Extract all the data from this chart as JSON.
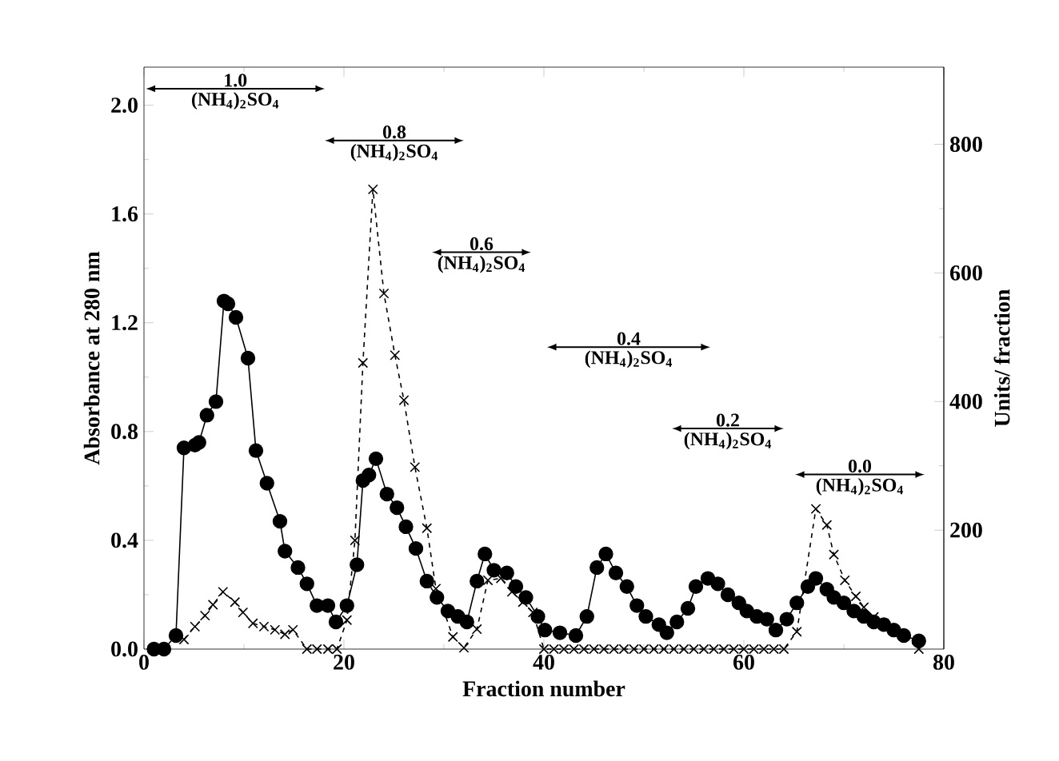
{
  "chart_data": {
    "type": "line",
    "xlabel": "Fraction number",
    "ylabel": "Absorbance at 280 nm",
    "y2label": "Units/ fraction",
    "xlim": [
      0,
      80
    ],
    "xticks": [
      0,
      20,
      40,
      60,
      80
    ],
    "ylim": [
      0,
      2.14
    ],
    "yticks": [
      {
        "value": 0,
        "label": "0.0"
      },
      {
        "value": 0.4,
        "label": "0.4"
      },
      {
        "value": 0.8,
        "label": "0.8"
      },
      {
        "value": 1.2,
        "label": "1.2"
      },
      {
        "value": 1.6,
        "label": "1.6"
      },
      {
        "value": 2.0,
        "label": "2.0"
      }
    ],
    "y2lim": [
      15,
      920
    ],
    "y2ticks": [
      200,
      400,
      600,
      800
    ],
    "series": [
      {
        "color": "#000000",
        "marker": "circle",
        "line_style": "solid",
        "axis": "y",
        "x": [
          1,
          2,
          3.2,
          4,
          5.1,
          5.5,
          6.3,
          7.2,
          8,
          8.4,
          9.2,
          10.4,
          11.2,
          12.3,
          13.6,
          14.1,
          15.4,
          16.3,
          17.3,
          18.4,
          19.2,
          20.3,
          21.3,
          21.9,
          22.5,
          23.2,
          24.3,
          25.3,
          26.2,
          27.2,
          28.3,
          29.3,
          30.4,
          31.4,
          32.3,
          33.3,
          34.1,
          35,
          36.3,
          37.2,
          38.2,
          39.4,
          40.1,
          41.6,
          43.2,
          44.3,
          45.3,
          46.2,
          47.2,
          48.3,
          49.3,
          50.2,
          51.5,
          52.3,
          53.3,
          54.4,
          55.2,
          56.4,
          57.4,
          58.4,
          59.5,
          60.3,
          61.3,
          62.3,
          63.2,
          64.3,
          65.3,
          66.4,
          67.2,
          68.3,
          69,
          70,
          71,
          72,
          73,
          74,
          75,
          76,
          77.5
        ],
        "values": [
          0,
          0,
          0.05,
          0.74,
          0.75,
          0.76,
          0.86,
          0.91,
          1.28,
          1.27,
          1.22,
          1.07,
          0.73,
          0.61,
          0.47,
          0.36,
          0.3,
          0.24,
          0.16,
          0.16,
          0.1,
          0.16,
          0.31,
          0.62,
          0.64,
          0.7,
          0.57,
          0.52,
          0.45,
          0.37,
          0.25,
          0.19,
          0.14,
          0.12,
          0.1,
          0.25,
          0.35,
          0.29,
          0.28,
          0.23,
          0.19,
          0.12,
          0.07,
          0.06,
          0.05,
          0.12,
          0.3,
          0.35,
          0.28,
          0.23,
          0.16,
          0.12,
          0.09,
          0.06,
          0.1,
          0.15,
          0.23,
          0.26,
          0.24,
          0.2,
          0.17,
          0.14,
          0.12,
          0.11,
          0.07,
          0.11,
          0.17,
          0.23,
          0.26,
          0.22,
          0.19,
          0.17,
          0.14,
          0.12,
          0.1,
          0.09,
          0.07,
          0.05,
          0.03
        ]
      },
      {
        "color": "#000000",
        "marker": "cross",
        "line_style": "dashed",
        "axis": "y2",
        "x": [
          4,
          5.1,
          6.1,
          6.9,
          7.9,
          9.1,
          9.9,
          10.9,
          12,
          13.1,
          14.1,
          14.9,
          16.3,
          17.3,
          18.4,
          19.3,
          20.3,
          21.1,
          21.9,
          22.9,
          24,
          25.1,
          26,
          27.1,
          28.3,
          29.2,
          30.9,
          32,
          33.3,
          34.4,
          35.7,
          36.8,
          37.9,
          38.9,
          40,
          41,
          42,
          43,
          44,
          45,
          46,
          47,
          48,
          49,
          50,
          51,
          52,
          53,
          54,
          55,
          56,
          57,
          58,
          59,
          60,
          61,
          62,
          63,
          64,
          65.3,
          67.2,
          68.3,
          69,
          70.1,
          71.2,
          72,
          73,
          74,
          75,
          76,
          77.5
        ],
        "values": [
          30,
          50,
          67,
          84,
          104,
          88,
          72,
          55,
          50,
          45,
          38,
          45,
          15,
          15,
          15,
          15,
          60,
          184,
          460,
          730,
          568,
          472,
          402,
          298,
          203,
          109,
          34,
          17,
          46,
          122,
          125,
          104,
          88,
          72,
          15,
          15,
          15,
          15,
          15,
          15,
          15,
          15,
          15,
          15,
          15,
          15,
          15,
          15,
          15,
          15,
          15,
          15,
          15,
          15,
          15,
          15,
          15,
          15,
          15,
          42,
          233,
          208,
          162,
          122,
          97,
          80,
          65,
          55,
          45,
          35,
          15
        ]
      }
    ],
    "annotations": [
      "1.0",
      "(NH$_{4}$)$_{2}$SO$_{4}$",
      "0.8",
      "(NH$_{4}$)$_{2}$SO$_{4}$",
      "0.6",
      "(NH$_{4}$)$_{2}$SO$_{4}$",
      "0.4",
      "(NH$_{4}$)$_{2}$SO$_{4}$",
      "0.2",
      "(NH$_{4}$)$_{2}$SO$_{4}$",
      "0.0",
      "(NH$_{4}$)$_{2}$SO$_{4}$"
    ]
  }
}
